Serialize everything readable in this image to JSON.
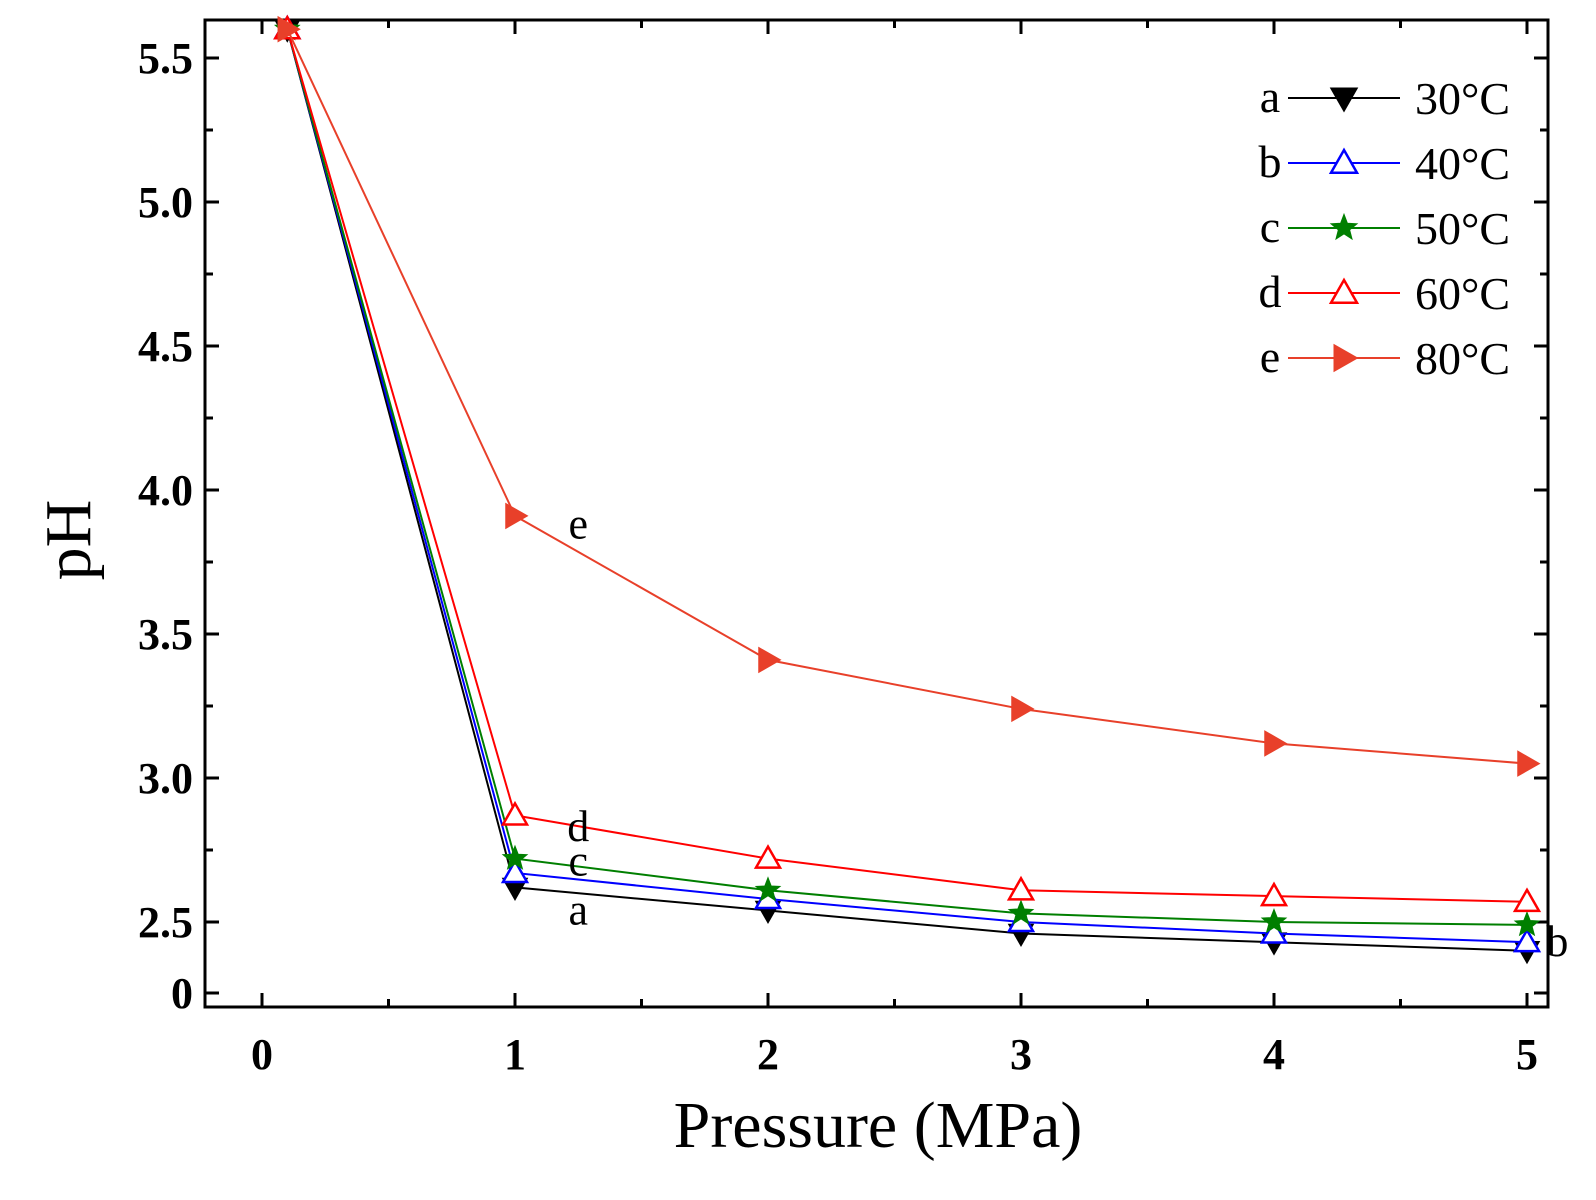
{
  "chart_data": {
    "type": "line",
    "xlabel": "Pressure (MPa)",
    "ylabel": "pH",
    "x_ticks": [
      "0",
      "1",
      "2",
      "3",
      "4",
      "5"
    ],
    "y_ticks": [
      "0",
      "2.5",
      "3.0",
      "3.5",
      "4.0",
      "4.5",
      "5.0",
      "5.5"
    ],
    "y_axis_break": "0 to 2.3",
    "xlim": [
      -0.2,
      5.1
    ],
    "ylim": [
      2.3,
      5.65
    ],
    "grid": false,
    "legend_position": "top-right",
    "series": [
      {
        "name": "30°C",
        "letter": "a",
        "color": "#000000",
        "marker": "triangle-down-filled",
        "x": [
          0.1,
          1,
          2,
          3,
          4,
          5
        ],
        "y": [
          5.6,
          2.62,
          2.54,
          2.46,
          2.43,
          2.4
        ]
      },
      {
        "name": "40°C",
        "letter": "b",
        "color": "#0000ff",
        "marker": "triangle-up-open",
        "x": [
          0.1,
          1,
          2,
          3,
          4,
          5
        ],
        "y": [
          5.6,
          2.67,
          2.58,
          2.5,
          2.46,
          2.43
        ]
      },
      {
        "name": "50°C",
        "letter": "c",
        "color": "#007f00",
        "marker": "star-filled",
        "x": [
          0.1,
          1,
          2,
          3,
          4,
          5
        ],
        "y": [
          5.6,
          2.72,
          2.61,
          2.53,
          2.5,
          2.49
        ]
      },
      {
        "name": "60°C",
        "letter": "d",
        "color": "#ff0000",
        "marker": "triangle-up-open",
        "x": [
          0.1,
          1,
          2,
          3,
          4,
          5
        ],
        "y": [
          5.6,
          2.87,
          2.72,
          2.61,
          2.59,
          2.57
        ]
      },
      {
        "name": "80°C",
        "letter": "e",
        "color": "#e8402a",
        "marker": "triangle-right-filled",
        "x": [
          0.1,
          1,
          2,
          3,
          4,
          5
        ],
        "y": [
          5.6,
          3.91,
          3.41,
          3.24,
          3.12,
          3.05
        ]
      }
    ],
    "curve_labels": [
      {
        "text": "e",
        "x": 1.25,
        "y": 3.88
      },
      {
        "text": "d",
        "x": 1.25,
        "y": 2.83
      },
      {
        "text": "c",
        "x": 1.25,
        "y": 2.71
      },
      {
        "text": "a",
        "x": 1.25,
        "y": 2.54
      },
      {
        "text": "b",
        "x": 5.12,
        "y": 2.43
      }
    ]
  }
}
